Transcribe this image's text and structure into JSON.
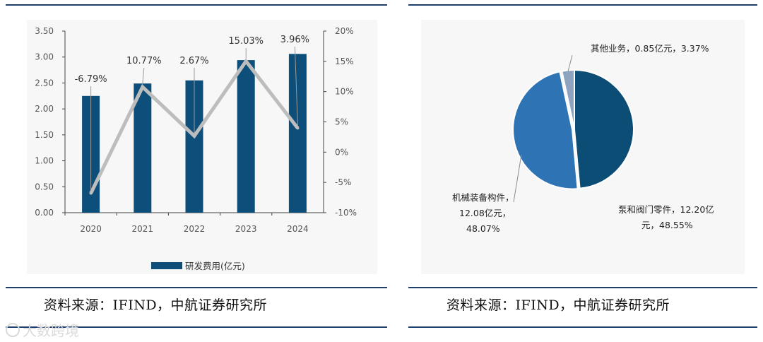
{
  "chart_data": [
    {
      "type": "bar",
      "categories": [
        "2020",
        "2021",
        "2022",
        "2023",
        "2024"
      ],
      "series": [
        {
          "name": "研发费用(亿元)",
          "type": "bar",
          "axis": "left",
          "values": [
            2.25,
            2.49,
            2.55,
            2.94,
            3.06
          ],
          "color": "#0d4f7a"
        },
        {
          "type": "line",
          "axis": "right",
          "values": [
            -6.79,
            10.77,
            2.67,
            15.03,
            3.96
          ],
          "color": "#bdbdbd"
        }
      ],
      "data_labels": [
        "-6.79%",
        "10.77%",
        "2.67%",
        "15.03%",
        "3.96%"
      ],
      "ylim": [
        0,
        3.5
      ],
      "y_ticks": [
        "0.00",
        "0.50",
        "1.00",
        "1.50",
        "2.00",
        "2.50",
        "3.00",
        "3.50"
      ],
      "y2lim": [
        -10,
        20
      ],
      "y2_ticks": [
        "-10%",
        "-5%",
        "0%",
        "5%",
        "10%",
        "15%",
        "20%"
      ],
      "legend": {
        "position": "bottom",
        "entries": [
          "研发费用(亿元)"
        ]
      },
      "grid": false
    },
    {
      "type": "pie",
      "slices": [
        {
          "label": "泵和阀门零件",
          "amount": "12.20亿元",
          "percent_label": "48.55%",
          "value": 48.55,
          "color": "#0b4d74"
        },
        {
          "label": "机械装备构件",
          "amount": "12.08亿元",
          "percent_label": "48.07%",
          "value": 48.07,
          "color": "#2e74b5"
        },
        {
          "label": "其他业务",
          "amount": "0.85亿元",
          "percent_label": "3.37%",
          "value": 3.37,
          "color": "#8ea3bf"
        }
      ],
      "labels": {
        "pump": [
          "泵和阀门零件，12.20亿",
          "元，48.55%"
        ],
        "machine": [
          "机械装备构件，",
          "12.08亿元，",
          "48.07%"
        ],
        "other": [
          "其他业务，0.85亿元，3.37%"
        ]
      }
    }
  ],
  "sources": {
    "left": "资料来源：IFIND，中航证券研究所",
    "right": "资料来源：IFIND，中航证券研究所"
  },
  "watermark": "大数跨境"
}
